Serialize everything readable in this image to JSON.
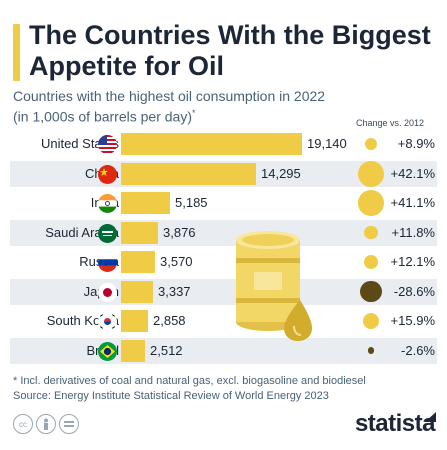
{
  "chart_data": {
    "type": "bar",
    "orientation": "horizontal",
    "title": "The Countries With the Biggest Appetite for Oil",
    "subtitle": "Countries with the highest oil consumption in 2022 (in 1,000s of barrels per day)",
    "subtitle_marker": "*",
    "change_header": "Change vs. 2012",
    "categories": [
      "United States",
      "China",
      "India",
      "Saudi Arabia",
      "Russia",
      "Japan",
      "South Korea",
      "Brazil"
    ],
    "values": [
      19140,
      14295,
      5185,
      3876,
      3570,
      3337,
      2858,
      2512
    ],
    "value_labels": [
      "19,140",
      "14,295",
      "5,185",
      "3,876",
      "3,570",
      "3,337",
      "2,858",
      "2,512"
    ],
    "change_values": [
      8.9,
      42.1,
      41.1,
      11.8,
      12.1,
      -28.6,
      15.9,
      -2.6
    ],
    "change_labels": [
      "+8.9%",
      "+42.1%",
      "+41.1%",
      "+11.8%",
      "+12.1%",
      "-28.6%",
      "+15.9%",
      "-2.6%"
    ],
    "xlim": [
      0,
      19140
    ],
    "colors": {
      "bar": "#f0cb45",
      "positive_dot": "#f0cb45",
      "negative_dot": "#5b4a16",
      "accent": "#f0cb45"
    },
    "legend": "none",
    "grid": false
  },
  "flag_icons": [
    "us-flag-icon",
    "china-flag-icon",
    "india-flag-icon",
    "saudi-arabia-flag-icon",
    "russia-flag-icon",
    "japan-flag-icon",
    "south-korea-flag-icon",
    "brazil-flag-icon"
  ],
  "footnote": {
    "line1": "* Incl. derivatives of coal and natural gas, excl. biogasoline and biodiesel",
    "line2": "Source: Energy Institute Statistical Review of World Energy 2023"
  },
  "footer": {
    "icons": [
      "cc-icon",
      "person-icon",
      "equals-icon"
    ],
    "brand": "statista"
  }
}
